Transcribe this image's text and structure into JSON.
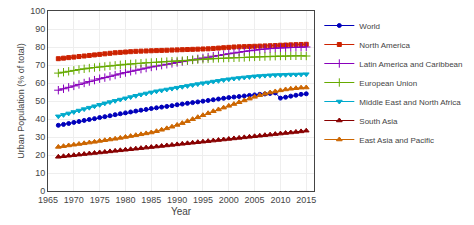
{
  "chart_data": {
    "type": "line",
    "xlabel": "Year",
    "ylabel": "Urban Population (% of total)",
    "x": [
      1967,
      1968,
      1969,
      1970,
      1971,
      1972,
      1973,
      1974,
      1975,
      1976,
      1977,
      1978,
      1979,
      1980,
      1981,
      1982,
      1983,
      1984,
      1985,
      1986,
      1987,
      1988,
      1989,
      1990,
      1991,
      1992,
      1993,
      1994,
      1995,
      1996,
      1997,
      1998,
      1999,
      2000,
      2001,
      2002,
      2003,
      2004,
      2005,
      2006,
      2007,
      2008,
      2009,
      2010,
      2011,
      2012,
      2013,
      2014,
      2015
    ],
    "series": [
      {
        "name": "World",
        "color": "#0000BB",
        "marker": "circle",
        "values": [
          36.5,
          37.0,
          37.5,
          38.1,
          38.6,
          39.2,
          39.7,
          40.2,
          40.8,
          41.3,
          41.8,
          42.4,
          42.9,
          43.4,
          43.9,
          44.4,
          44.9,
          45.3,
          45.8,
          46.2,
          46.6,
          47.0,
          47.4,
          47.9,
          48.3,
          48.7,
          49.1,
          49.5,
          49.9,
          50.3,
          50.7,
          51.1,
          51.5,
          51.9,
          52.2,
          52.5,
          52.8,
          53.1,
          53.4,
          53.7,
          53.9,
          54.2,
          54.5,
          51.6,
          52.1,
          52.7,
          53.2,
          53.7,
          54.0
        ]
      },
      {
        "name": "North America",
        "color": "#CC2200",
        "marker": "square",
        "values": [
          73.5,
          73.8,
          74.1,
          74.4,
          74.7,
          75.0,
          75.3,
          75.6,
          75.9,
          76.2,
          76.5,
          76.8,
          77.0,
          77.2,
          77.4,
          77.6,
          77.7,
          77.8,
          77.9,
          78.0,
          78.1,
          78.2,
          78.3,
          78.4,
          78.5,
          78.6,
          78.7,
          78.8,
          78.9,
          79.0,
          79.2,
          79.4,
          79.6,
          79.8,
          80.0,
          80.1,
          80.2,
          80.3,
          80.4,
          80.5,
          80.6,
          80.7,
          80.8,
          81.0,
          81.1,
          81.2,
          81.3,
          81.4,
          81.5
        ]
      },
      {
        "name": "Latin America and Caribbean",
        "color": "#8800BB",
        "marker": "plus",
        "values": [
          56.0,
          56.8,
          57.6,
          58.4,
          59.2,
          60.0,
          60.8,
          61.6,
          62.4,
          63.0,
          63.7,
          64.4,
          65.1,
          65.8,
          66.5,
          67.1,
          67.7,
          68.3,
          68.9,
          69.4,
          69.9,
          70.4,
          70.9,
          71.4,
          71.9,
          72.4,
          72.9,
          73.4,
          73.9,
          74.4,
          74.9,
          75.3,
          75.8,
          76.3,
          76.7,
          77.1,
          77.5,
          77.9,
          78.3,
          78.6,
          78.9,
          79.1,
          79.3,
          79.5,
          79.6,
          79.7,
          79.8,
          79.9,
          80.0
        ]
      },
      {
        "name": "European Union",
        "color": "#66AA00",
        "marker": "plus",
        "values": [
          65.5,
          66.0,
          66.5,
          67.0,
          67.5,
          67.9,
          68.3,
          68.6,
          68.9,
          69.2,
          69.5,
          69.8,
          70.1,
          70.4,
          70.6,
          70.8,
          71.0,
          71.2,
          71.4,
          71.5,
          71.7,
          71.9,
          72.1,
          72.2,
          72.4,
          72.6,
          72.8,
          73.0,
          73.2,
          73.4,
          73.6,
          73.7,
          73.8,
          73.9,
          74.0,
          74.1,
          74.2,
          74.4,
          74.5,
          74.6,
          74.7,
          74.8,
          74.9,
          75.0,
          75.0,
          75.1,
          75.1,
          75.1,
          75.0
        ]
      },
      {
        "name": "Middle East and North Africa",
        "color": "#00AACC",
        "marker": "triangle-down",
        "values": [
          41.5,
          42.3,
          43.1,
          43.9,
          44.7,
          45.5,
          46.3,
          47.1,
          47.9,
          48.7,
          49.4,
          50.1,
          50.8,
          51.5,
          52.2,
          52.9,
          53.6,
          54.2,
          54.8,
          55.4,
          55.9,
          56.4,
          56.9,
          57.4,
          57.9,
          58.4,
          58.9,
          59.4,
          59.9,
          60.3,
          60.8,
          61.2,
          61.7,
          62.1,
          62.5,
          62.8,
          63.1,
          63.4,
          63.7,
          63.9,
          64.1,
          64.3,
          64.4,
          64.5,
          64.6,
          64.7,
          64.7,
          64.8,
          64.9
        ]
      },
      {
        "name": "South Asia",
        "color": "#880000",
        "marker": "triangle-up",
        "values": [
          19.0,
          19.3,
          19.6,
          19.9,
          20.2,
          20.5,
          20.8,
          21.1,
          21.4,
          21.7,
          22.0,
          22.3,
          22.6,
          22.9,
          23.2,
          23.5,
          23.8,
          24.1,
          24.4,
          24.7,
          25.0,
          25.3,
          25.6,
          25.9,
          26.2,
          26.5,
          26.8,
          27.1,
          27.4,
          27.7,
          28.0,
          28.3,
          28.6,
          28.9,
          29.2,
          29.5,
          29.8,
          30.1,
          30.4,
          30.7,
          31.0,
          31.3,
          31.6,
          31.9,
          32.2,
          32.5,
          32.8,
          33.1,
          33.5
        ]
      },
      {
        "name": "East Asia and Pacific",
        "color": "#CC6600",
        "marker": "triangle-up",
        "values": [
          24.5,
          24.9,
          25.3,
          25.7,
          26.1,
          26.5,
          26.9,
          27.3,
          27.8,
          28.2,
          28.6,
          29.0,
          29.5,
          30.0,
          30.5,
          31.0,
          31.5,
          32.0,
          32.5,
          33.2,
          34.0,
          34.8,
          35.7,
          36.7,
          37.7,
          38.8,
          39.9,
          41.0,
          42.1,
          43.2,
          44.3,
          45.3,
          46.3,
          47.3,
          48.3,
          49.3,
          50.3,
          51.3,
          52.3,
          53.2,
          54.0,
          54.7,
          55.3,
          55.9,
          56.4,
          56.8,
          57.1,
          57.4,
          57.5
        ]
      }
    ],
    "xlim": [
      1965,
      2016.5
    ],
    "ylim": [
      0,
      100
    ],
    "xticks": [
      1965,
      1970,
      1975,
      1980,
      1985,
      1990,
      1995,
      2000,
      2005,
      2010,
      2015
    ],
    "yticks": [
      0,
      10,
      20,
      30,
      40,
      50,
      60,
      70,
      80,
      90,
      100
    ],
    "grid": true,
    "legend": "right"
  }
}
